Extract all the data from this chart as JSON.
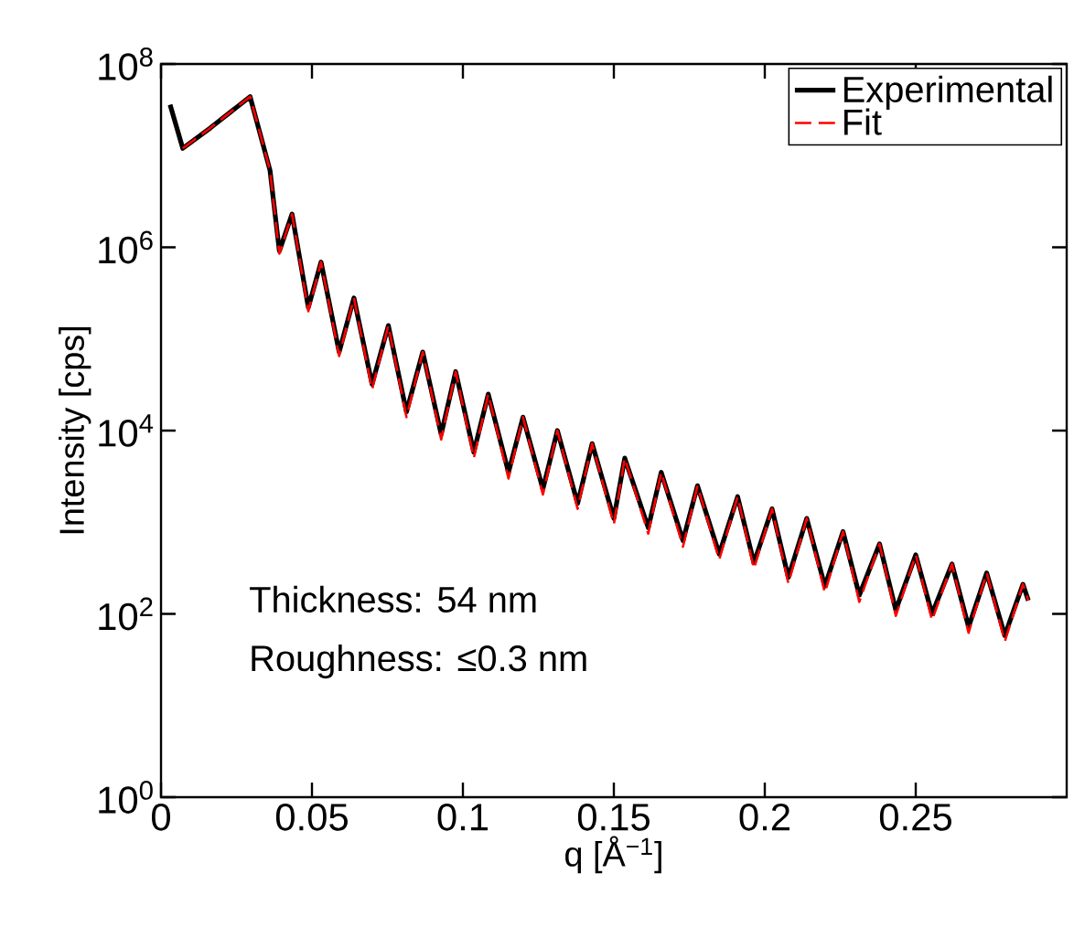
{
  "chart_data": {
    "type": "line",
    "xlabel": "q [Å$^{−1}$]",
    "ylabel": "Intensity [cps]",
    "log": "y",
    "xlim": [
      0,
      0.3
    ],
    "ylim": [
      1,
      100000000
    ],
    "xticks": [
      0,
      0.05,
      0.1,
      0.15,
      0.2,
      0.25
    ],
    "yticks": [
      {
        "value": 1,
        "label": "10$^{0}$"
      },
      {
        "value": 100,
        "label": "10$^{2}$"
      },
      {
        "value": 10000,
        "label": "10$^{4}$"
      },
      {
        "value": 1000000,
        "label": "10$^{6}$"
      },
      {
        "value": 100000000,
        "label": "10$^{8}$"
      }
    ],
    "grid": false,
    "legend": "top right",
    "marker": "none",
    "x": [
      0.003,
      0.0072,
      0.0163,
      0.0295,
      0.0361,
      0.0392,
      0.0434,
      0.0488,
      0.053,
      0.059,
      0.0639,
      0.0699,
      0.0753,
      0.0813,
      0.0867,
      0.0928,
      0.0976,
      0.1036,
      0.1084,
      0.1151,
      0.1199,
      0.1265,
      0.1313,
      0.138,
      0.1428,
      0.15,
      0.1536,
      0.1614,
      0.1657,
      0.1729,
      0.1777,
      0.1849,
      0.191,
      0.1964,
      0.2024,
      0.2078,
      0.2139,
      0.2199,
      0.2259,
      0.2313,
      0.238,
      0.2434,
      0.25,
      0.2554,
      0.262,
      0.2675,
      0.2735,
      0.2795,
      0.2855,
      0.2873
    ],
    "series": [
      {
        "name": "Experimental",
        "color": "#000000",
        "line_style": "solid",
        "values": [
          36000000,
          12000000,
          20000000,
          44000000,
          6900000,
          910000,
          2300000,
          220000,
          690000,
          72000,
          280000,
          32000,
          140000,
          16000,
          72000,
          9100,
          44000,
          5800,
          25000,
          3500,
          14000,
          2300,
          10000,
          1600,
          7200,
          1100,
          5000,
          870,
          3500,
          630,
          2500,
          450,
          1900,
          360,
          1400,
          250,
          1100,
          200,
          790,
          160,
          580,
          110,
          440,
          100,
          350,
          72,
          280,
          58,
          210,
          140
        ]
      },
      {
        "name": "Fit",
        "color": "#ff0000",
        "line_style": "dashed",
        "values": [
          null,
          12000000,
          20000000,
          44000000,
          6900000,
          850000,
          2300000,
          200000,
          690000,
          65000,
          280000,
          28000,
          140000,
          14000,
          72000,
          8000,
          44000,
          5000,
          25000,
          3000,
          14000,
          2000,
          10000,
          1400,
          7200,
          950,
          5000,
          750,
          3500,
          540,
          2500,
          390,
          1900,
          310,
          1400,
          215,
          1100,
          170,
          790,
          135,
          580,
          95,
          440,
          85,
          350,
          62,
          280,
          50,
          210,
          140
        ]
      }
    ],
    "annotations": [
      "Thickness:     54 nm",
      "Roughness: ≤0.3 nm"
    ]
  }
}
